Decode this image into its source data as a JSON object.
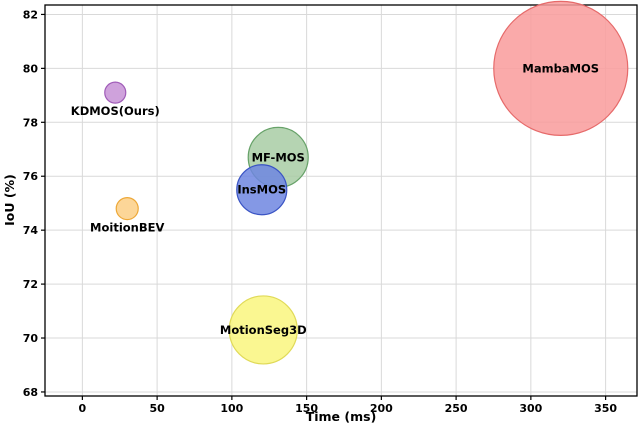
{
  "chart_data": {
    "type": "scatter",
    "subtype": "bubble",
    "title": "",
    "xlabel": "Time (ms)",
    "ylabel": "IoU (%)",
    "x_ticks": [
      0,
      50,
      100,
      150,
      200,
      250,
      300,
      350
    ],
    "y_ticks": [
      68,
      70,
      72,
      74,
      76,
      78,
      80,
      82
    ],
    "xlim": [
      -25,
      371
    ],
    "ylim": [
      67.85,
      82.35
    ],
    "grid": true,
    "grid_color": "#d9d9d9",
    "axis_color": "#000000",
    "background": "#ffffff",
    "legend": "none",
    "points": [
      {
        "name": "MotionSeg3D",
        "time_ms": 121,
        "iou": 70.3,
        "bubble_r": 34,
        "fill": "#f9f67e",
        "stroke": "#e0da58",
        "label_pos": "center"
      },
      {
        "name": "MF-MOS",
        "time_ms": 131,
        "iou": 76.7,
        "bubble_r": 30,
        "fill": "#a8cda4",
        "stroke": "#67a269",
        "label_pos": "center"
      },
      {
        "name": "InsMOS",
        "time_ms": 120,
        "iou": 75.5,
        "bubble_r": 25,
        "fill": "#6e86e0",
        "stroke": "#3a54c4",
        "label_pos": "center"
      },
      {
        "name": "KDMOS(Ours)",
        "time_ms": 22,
        "iou": 79.1,
        "bubble_r": 10.5,
        "fill": "#c792d6",
        "stroke": "#a05cb8",
        "label_pos": "below"
      },
      {
        "name": "MoitionBEV",
        "time_ms": 30,
        "iou": 74.8,
        "bubble_r": 11,
        "fill": "#fbcf86",
        "stroke": "#eda838",
        "label_pos": "below"
      },
      {
        "name": "MambaMOS",
        "time_ms": 320,
        "iou": 80.0,
        "bubble_r": 67,
        "fill": "#f99b9b",
        "stroke": "#e66a6a",
        "label_pos": "center"
      }
    ]
  }
}
